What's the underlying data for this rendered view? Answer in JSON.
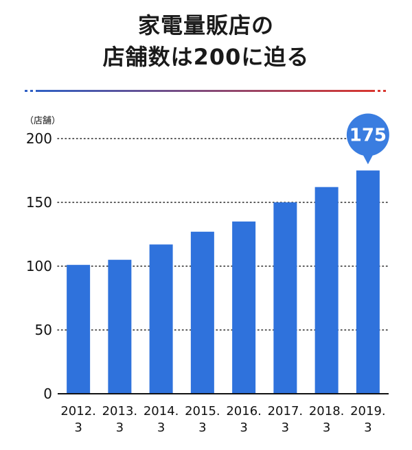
{
  "title_lines": [
    "家電量販店の",
    "店舗数は200に迫る"
  ],
  "colors": {
    "bar": "#2f72dc",
    "bubble": "#3a7de0",
    "divider_left": "#2f5fc4",
    "divider_right": "#d8362f",
    "text": "#111111"
  },
  "chart_data": {
    "type": "bar",
    "title": "家電量販店の店舗数は200に迫る",
    "unit_label": "（店舗）",
    "categories": [
      "2012.3",
      "2013.3",
      "2014.3",
      "2015.3",
      "2016.3",
      "2017.3",
      "2018.3",
      "2019.3"
    ],
    "category_lines": [
      [
        "2012.",
        "3"
      ],
      [
        "2013.",
        "3"
      ],
      [
        "2014.",
        "3"
      ],
      [
        "2015.",
        "3"
      ],
      [
        "2016.",
        "3"
      ],
      [
        "2017.",
        "3"
      ],
      [
        "2018.",
        "3"
      ],
      [
        "2019.",
        "3"
      ]
    ],
    "values": [
      101,
      105,
      117,
      127,
      135,
      150,
      162,
      175
    ],
    "ylim": [
      0,
      200
    ],
    "yticks": [
      0,
      50,
      100,
      150,
      200
    ],
    "grid": "dotted horizontal",
    "callout": {
      "label": "175",
      "category_index": 7
    }
  }
}
